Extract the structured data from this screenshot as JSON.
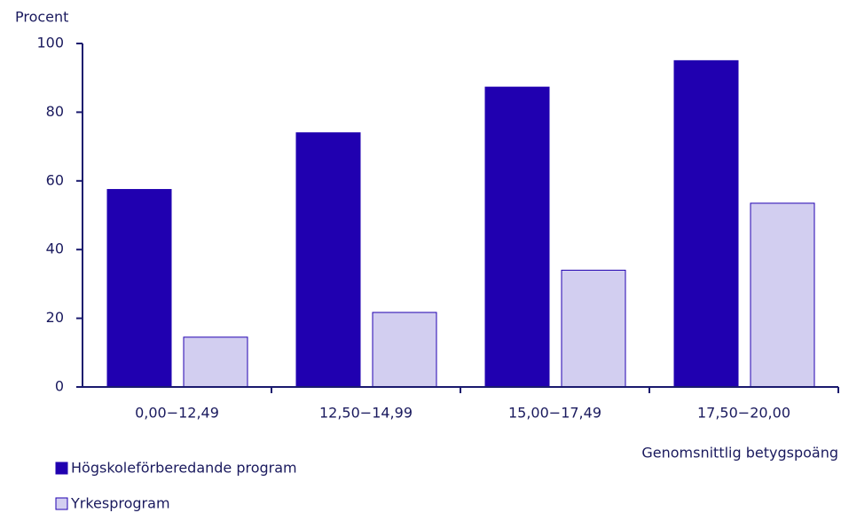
{
  "chart_data": {
    "type": "bar",
    "y_label": "Procent",
    "x_label": "Genomsnittlig betygspoäng",
    "categories": [
      "0,00−12,49",
      "12,50−14,99",
      "15,00−17,49",
      "17,50−20,00"
    ],
    "series": [
      {
        "name": "Högskoleförberedande program",
        "color": "#2000b0",
        "values": [
          57.5,
          74,
          87.3,
          95
        ]
      },
      {
        "name": "Yrkesprogram",
        "color": "#d2cef0",
        "values": [
          14.5,
          21.7,
          34,
          53.5
        ]
      }
    ],
    "ylim": [
      0,
      100
    ],
    "yticks": [
      0,
      20,
      40,
      60,
      80,
      100
    ],
    "grid": false,
    "legend": "bottom-left"
  }
}
